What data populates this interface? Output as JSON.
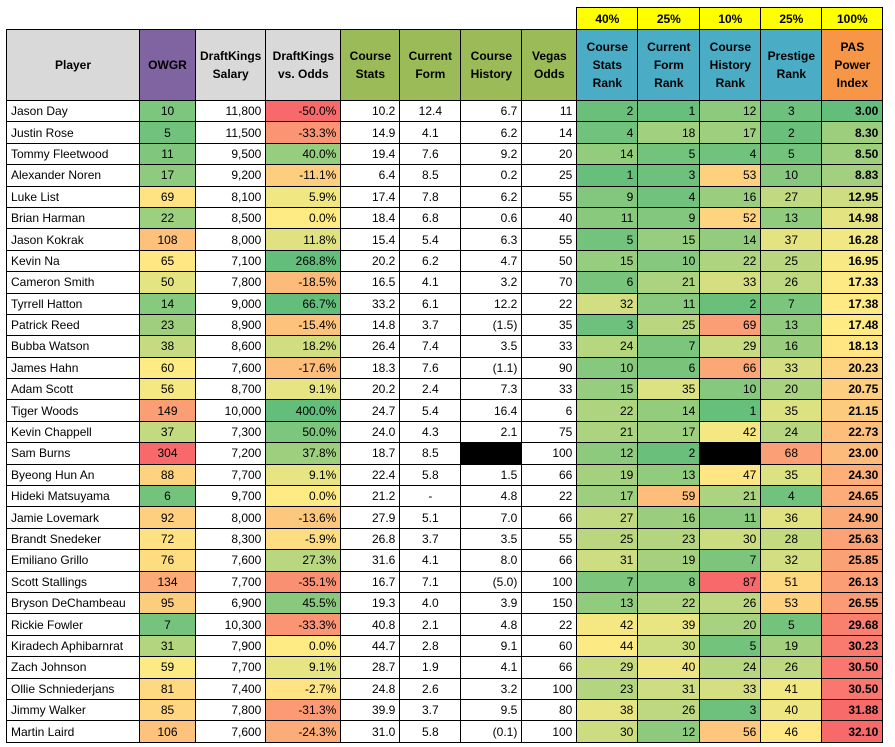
{
  "weights": [
    "40%",
    "25%",
    "10%",
    "25%",
    "100%"
  ],
  "headers": {
    "player": "Player",
    "owgr": "OWGR",
    "salary": "DraftKings Salary",
    "vs_odds": "DraftKings vs. Odds",
    "course_stats": "Course Stats",
    "current_form": "Current Form",
    "course_history": "Course History",
    "vegas_odds": "Vegas Odds",
    "course_stats_rank": "Course Stats Rank",
    "current_form_rank": "Current Form Rank",
    "course_history_rank": "Course History Rank",
    "prestige_rank": "Prestige Rank",
    "pas": "PAS Power Index"
  },
  "colors": {
    "owgr_header": "#8064a2",
    "stats_header": "#9bbb59",
    "rank_header": "#4bacc6",
    "pas_header": "#f79646",
    "weight_bg": "#ffff00",
    "player_header": "#d9d9d9"
  },
  "rows": [
    {
      "player": "Jason Day",
      "owgr": "10",
      "salary": "11,800",
      "vs_odds": "-50.0%",
      "course_stats": "10.2",
      "current_form": "12.4",
      "course_history": "6.7",
      "vegas": "11",
      "cs_rank": "2",
      "cf_rank": "1",
      "ch_rank": "12",
      "pr_rank": "3",
      "pas": "3.00"
    },
    {
      "player": "Justin Rose",
      "owgr": "5",
      "salary": "11,500",
      "vs_odds": "-33.3%",
      "course_stats": "14.9",
      "current_form": "4.1",
      "course_history": "6.2",
      "vegas": "14",
      "cs_rank": "4",
      "cf_rank": "18",
      "ch_rank": "17",
      "pr_rank": "2",
      "pas": "8.30"
    },
    {
      "player": "Tommy Fleetwood",
      "owgr": "11",
      "salary": "9,500",
      "vs_odds": "40.0%",
      "course_stats": "19.4",
      "current_form": "7.6",
      "course_history": "9.2",
      "vegas": "20",
      "cs_rank": "14",
      "cf_rank": "5",
      "ch_rank": "4",
      "pr_rank": "5",
      "pas": "8.50"
    },
    {
      "player": "Alexander Noren",
      "owgr": "17",
      "salary": "9,200",
      "vs_odds": "-11.1%",
      "course_stats": "6.4",
      "current_form": "8.5",
      "course_history": "0.2",
      "vegas": "25",
      "cs_rank": "1",
      "cf_rank": "3",
      "ch_rank": "53",
      "pr_rank": "10",
      "pas": "8.83"
    },
    {
      "player": "Luke List",
      "owgr": "69",
      "salary": "8,100",
      "vs_odds": "5.9%",
      "course_stats": "17.4",
      "current_form": "7.8",
      "course_history": "6.2",
      "vegas": "55",
      "cs_rank": "9",
      "cf_rank": "4",
      "ch_rank": "16",
      "pr_rank": "27",
      "pas": "12.95"
    },
    {
      "player": "Brian Harman",
      "owgr": "22",
      "salary": "8,500",
      "vs_odds": "0.0%",
      "course_stats": "18.4",
      "current_form": "6.8",
      "course_history": "0.6",
      "vegas": "40",
      "cs_rank": "11",
      "cf_rank": "9",
      "ch_rank": "52",
      "pr_rank": "13",
      "pas": "14.98"
    },
    {
      "player": "Jason Kokrak",
      "owgr": "108",
      "salary": "8,000",
      "vs_odds": "11.8%",
      "course_stats": "15.4",
      "current_form": "5.4",
      "course_history": "6.3",
      "vegas": "55",
      "cs_rank": "5",
      "cf_rank": "15",
      "ch_rank": "14",
      "pr_rank": "37",
      "pas": "16.28"
    },
    {
      "player": "Kevin Na",
      "owgr": "65",
      "salary": "7,100",
      "vs_odds": "268.8%",
      "course_stats": "20.2",
      "current_form": "6.2",
      "course_history": "4.7",
      "vegas": "50",
      "cs_rank": "15",
      "cf_rank": "10",
      "ch_rank": "22",
      "pr_rank": "25",
      "pas": "16.95"
    },
    {
      "player": "Cameron Smith",
      "owgr": "50",
      "salary": "7,800",
      "vs_odds": "-18.5%",
      "course_stats": "16.5",
      "current_form": "4.1",
      "course_history": "3.2",
      "vegas": "70",
      "cs_rank": "6",
      "cf_rank": "21",
      "ch_rank": "33",
      "pr_rank": "26",
      "pas": "17.33"
    },
    {
      "player": "Tyrrell Hatton",
      "owgr": "14",
      "salary": "9,000",
      "vs_odds": "66.7%",
      "course_stats": "33.2",
      "current_form": "6.1",
      "course_history": "12.2",
      "vegas": "22",
      "cs_rank": "32",
      "cf_rank": "11",
      "ch_rank": "2",
      "pr_rank": "7",
      "pas": "17.38"
    },
    {
      "player": "Patrick Reed",
      "owgr": "23",
      "salary": "8,900",
      "vs_odds": "-15.4%",
      "course_stats": "14.8",
      "current_form": "3.7",
      "course_history": "(1.5)",
      "vegas": "35",
      "cs_rank": "3",
      "cf_rank": "25",
      "ch_rank": "69",
      "pr_rank": "13",
      "pas": "17.48"
    },
    {
      "player": "Bubba Watson",
      "owgr": "38",
      "salary": "8,600",
      "vs_odds": "18.2%",
      "course_stats": "26.4",
      "current_form": "7.4",
      "course_history": "3.5",
      "vegas": "33",
      "cs_rank": "24",
      "cf_rank": "7",
      "ch_rank": "29",
      "pr_rank": "16",
      "pas": "18.13"
    },
    {
      "player": "James Hahn",
      "owgr": "60",
      "salary": "7,600",
      "vs_odds": "-17.6%",
      "course_stats": "18.3",
      "current_form": "7.6",
      "course_history": "(1.1)",
      "vegas": "90",
      "cs_rank": "10",
      "cf_rank": "6",
      "ch_rank": "66",
      "pr_rank": "33",
      "pas": "20.23"
    },
    {
      "player": "Adam Scott",
      "owgr": "56",
      "salary": "8,700",
      "vs_odds": "9.1%",
      "course_stats": "20.2",
      "current_form": "2.4",
      "course_history": "7.3",
      "vegas": "33",
      "cs_rank": "15",
      "cf_rank": "35",
      "ch_rank": "10",
      "pr_rank": "20",
      "pas": "20.75"
    },
    {
      "player": "Tiger Woods",
      "owgr": "149",
      "salary": "10,000",
      "vs_odds": "400.0%",
      "course_stats": "24.7",
      "current_form": "5.4",
      "course_history": "16.4",
      "vegas": "6",
      "cs_rank": "22",
      "cf_rank": "14",
      "ch_rank": "1",
      "pr_rank": "35",
      "pas": "21.15"
    },
    {
      "player": "Kevin Chappell",
      "owgr": "37",
      "salary": "7,300",
      "vs_odds": "50.0%",
      "course_stats": "24.0",
      "current_form": "4.3",
      "course_history": "2.1",
      "vegas": "75",
      "cs_rank": "21",
      "cf_rank": "17",
      "ch_rank": "42",
      "pr_rank": "24",
      "pas": "22.73"
    },
    {
      "player": "Sam Burns",
      "owgr": "304",
      "salary": "7,200",
      "vs_odds": "37.8%",
      "course_stats": "18.7",
      "current_form": "8.5",
      "course_history": "",
      "vegas": "100",
      "cs_rank": "12",
      "cf_rank": "2",
      "ch_rank": "",
      "pr_rank": "68",
      "pas": "23.00"
    },
    {
      "player": "Byeong Hun An",
      "owgr": "88",
      "salary": "7,700",
      "vs_odds": "9.1%",
      "course_stats": "22.4",
      "current_form": "5.8",
      "course_history": "1.5",
      "vegas": "66",
      "cs_rank": "19",
      "cf_rank": "13",
      "ch_rank": "47",
      "pr_rank": "35",
      "pas": "24.30"
    },
    {
      "player": "Hideki Matsuyama",
      "owgr": "6",
      "salary": "9,700",
      "vs_odds": "0.0%",
      "course_stats": "21.2",
      "current_form": "-",
      "course_history": "4.8",
      "vegas": "22",
      "cs_rank": "17",
      "cf_rank": "59",
      "ch_rank": "21",
      "pr_rank": "4",
      "pas": "24.65"
    },
    {
      "player": "Jamie Lovemark",
      "owgr": "92",
      "salary": "8,000",
      "vs_odds": "-13.6%",
      "course_stats": "27.9",
      "current_form": "5.1",
      "course_history": "7.0",
      "vegas": "66",
      "cs_rank": "27",
      "cf_rank": "16",
      "ch_rank": "11",
      "pr_rank": "36",
      "pas": "24.90"
    },
    {
      "player": "Brandt Snedeker",
      "owgr": "72",
      "salary": "8,300",
      "vs_odds": "-5.9%",
      "course_stats": "26.8",
      "current_form": "3.7",
      "course_history": "3.5",
      "vegas": "55",
      "cs_rank": "25",
      "cf_rank": "23",
      "ch_rank": "30",
      "pr_rank": "28",
      "pas": "25.63"
    },
    {
      "player": "Emiliano Grillo",
      "owgr": "76",
      "salary": "7,600",
      "vs_odds": "27.3%",
      "course_stats": "31.6",
      "current_form": "4.1",
      "course_history": "8.0",
      "vegas": "66",
      "cs_rank": "31",
      "cf_rank": "19",
      "ch_rank": "7",
      "pr_rank": "32",
      "pas": "25.85"
    },
    {
      "player": "Scott Stallings",
      "owgr": "134",
      "salary": "7,700",
      "vs_odds": "-35.1%",
      "course_stats": "16.7",
      "current_form": "7.1",
      "course_history": "(5.0)",
      "vegas": "100",
      "cs_rank": "7",
      "cf_rank": "8",
      "ch_rank": "87",
      "pr_rank": "51",
      "pas": "26.13"
    },
    {
      "player": "Bryson DeChambeau",
      "owgr": "95",
      "salary": "6,900",
      "vs_odds": "45.5%",
      "course_stats": "19.3",
      "current_form": "4.0",
      "course_history": "3.9",
      "vegas": "150",
      "cs_rank": "13",
      "cf_rank": "22",
      "ch_rank": "26",
      "pr_rank": "53",
      "pas": "26.55"
    },
    {
      "player": "Rickie Fowler",
      "owgr": "7",
      "salary": "10,300",
      "vs_odds": "-33.3%",
      "course_stats": "40.8",
      "current_form": "2.1",
      "course_history": "4.8",
      "vegas": "22",
      "cs_rank": "42",
      "cf_rank": "39",
      "ch_rank": "20",
      "pr_rank": "5",
      "pas": "29.68"
    },
    {
      "player": "Kiradech Aphibarnrat",
      "owgr": "31",
      "salary": "7,900",
      "vs_odds": "0.0%",
      "course_stats": "44.7",
      "current_form": "2.8",
      "course_history": "9.1",
      "vegas": "60",
      "cs_rank": "44",
      "cf_rank": "30",
      "ch_rank": "5",
      "pr_rank": "19",
      "pas": "30.23"
    },
    {
      "player": "Zach Johnson",
      "owgr": "59",
      "salary": "7,700",
      "vs_odds": "9.1%",
      "course_stats": "28.7",
      "current_form": "1.9",
      "course_history": "4.1",
      "vegas": "66",
      "cs_rank": "29",
      "cf_rank": "40",
      "ch_rank": "24",
      "pr_rank": "26",
      "pas": "30.50"
    },
    {
      "player": "Ollie Schniederjans",
      "owgr": "81",
      "salary": "7,400",
      "vs_odds": "-2.7%",
      "course_stats": "24.8",
      "current_form": "2.6",
      "course_history": "3.2",
      "vegas": "100",
      "cs_rank": "23",
      "cf_rank": "31",
      "ch_rank": "33",
      "pr_rank": "41",
      "pas": "30.50"
    },
    {
      "player": "Jimmy Walker",
      "owgr": "85",
      "salary": "7,800",
      "vs_odds": "-31.3%",
      "course_stats": "39.9",
      "current_form": "3.7",
      "course_history": "9.5",
      "vegas": "80",
      "cs_rank": "38",
      "cf_rank": "26",
      "ch_rank": "3",
      "pr_rank": "40",
      "pas": "31.88"
    },
    {
      "player": "Martin Laird",
      "owgr": "106",
      "salary": "7,600",
      "vs_odds": "-24.3%",
      "course_stats": "31.0",
      "current_form": "5.8",
      "course_history": "(0.1)",
      "vegas": "100",
      "cs_rank": "30",
      "cf_rank": "12",
      "ch_rank": "56",
      "pr_rank": "46",
      "pas": "32.10"
    }
  ]
}
